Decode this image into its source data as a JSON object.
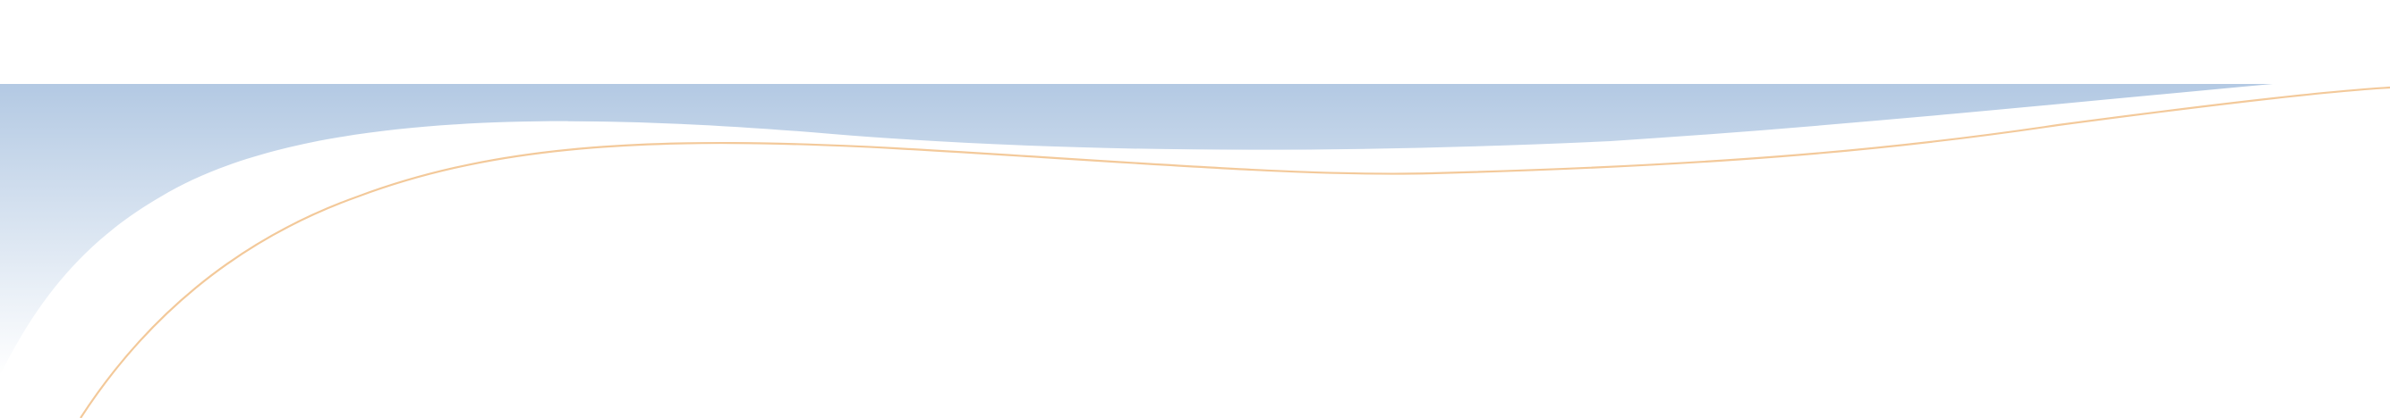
{
  "decoration": {
    "shape_name": "gradient-wave-band",
    "line_name": "accent-curve-line",
    "colors": {
      "background": "#ffffff",
      "wave_top": "#b3c9e3",
      "wave_mid": "#d6e2f0",
      "wave_bottom": "#ffffff",
      "accent_line": "#f3c99a"
    }
  }
}
